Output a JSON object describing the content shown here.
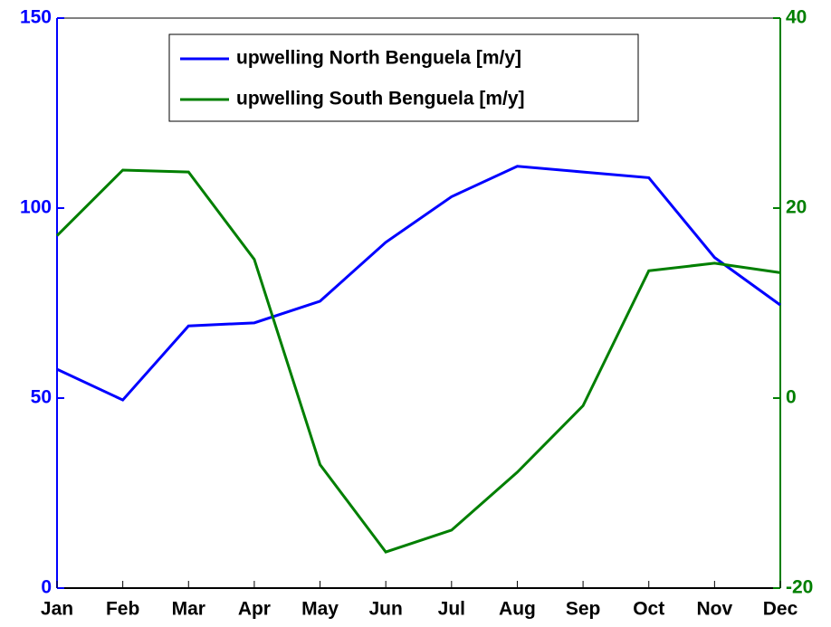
{
  "chart_data": {
    "type": "line",
    "categories": [
      "Jan",
      "Feb",
      "Mar",
      "Apr",
      "May",
      "Jun",
      "Jul",
      "Aug",
      "Sep",
      "Oct",
      "Nov",
      "Dec"
    ],
    "series": [
      {
        "name": "upwelling North Benguela [m/y]",
        "color": "#0000ff",
        "values": [
          57.6,
          49.5,
          69,
          69.8,
          75.5,
          91,
          103,
          111,
          109.5,
          108,
          87,
          74.5
        ]
      },
      {
        "name": "upwelling South Benguela [m/y]",
        "color": "#007f00",
        "axis": "y2",
        "values": [
          17.1,
          24,
          23.8,
          14.6,
          -7,
          -16.2,
          -13.9,
          -7.8,
          -0.8,
          13.4,
          14.2,
          13.2
        ]
      }
    ],
    "ylim": [
      0,
      150
    ],
    "yticks": [
      0,
      50,
      100,
      150
    ],
    "y2lim": [
      -20,
      40
    ],
    "y2ticks": [
      -20,
      0,
      20,
      40
    ],
    "legend": "top-center"
  }
}
